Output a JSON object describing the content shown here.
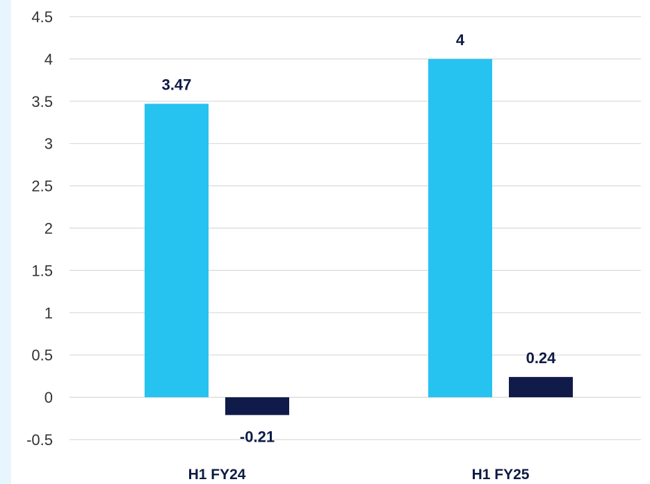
{
  "colors": {
    "page_strip": "#e6f6fc",
    "gridline": "#d9d9d9",
    "label_text": "#0e1a44"
  },
  "chart_data": {
    "type": "bar",
    "categories": [
      "H1 FY24",
      "H1 FY25"
    ],
    "series": [
      {
        "color": "#27c3f0",
        "values": [
          3.47,
          4
        ]
      },
      {
        "color": "#101b4a",
        "values": [
          -0.21,
          0.24
        ]
      }
    ],
    "data_labels": [
      [
        "3.47",
        "4"
      ],
      [
        "-0.21",
        "0.24"
      ]
    ],
    "ylim": [
      -0.5,
      4.5
    ],
    "y_ticks": [
      -0.5,
      0,
      0.5,
      1,
      1.5,
      2,
      2.5,
      3,
      3.5,
      4,
      4.5
    ],
    "y_tick_labels": [
      "-0.5",
      "0",
      "0.5",
      "1",
      "1.5",
      "2",
      "2.5",
      "3",
      "3.5",
      "4",
      "4.5"
    ],
    "grid": true,
    "legend": "none",
    "title": "",
    "xlabel": "",
    "ylabel": ""
  }
}
